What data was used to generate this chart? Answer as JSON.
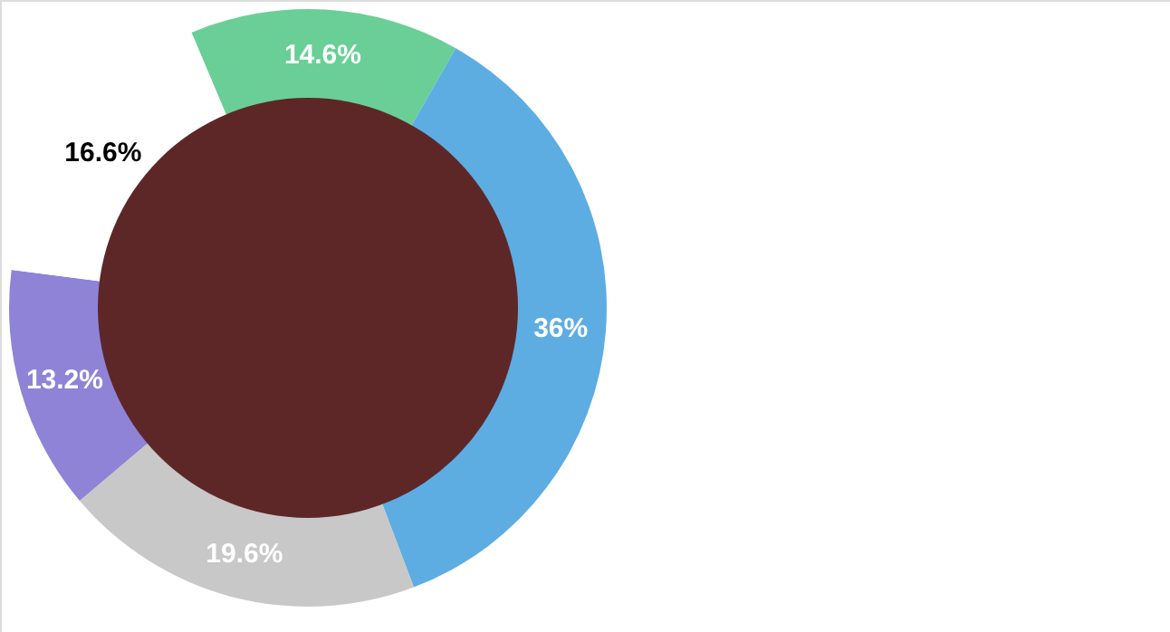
{
  "chart_data": {
    "type": "donut",
    "categories": [
      null,
      null,
      null,
      null,
      null
    ],
    "values": [
      14.6,
      36,
      19.6,
      13.2,
      16.6
    ],
    "colors": [
      "#6acf96",
      "#5dade2",
      "#c8c8c8",
      "#8f83d8",
      "#ffffff"
    ],
    "value_labels": [
      "14.6%",
      "36%",
      "19.6%",
      "13.2%",
      "16.6%"
    ]
  }
}
